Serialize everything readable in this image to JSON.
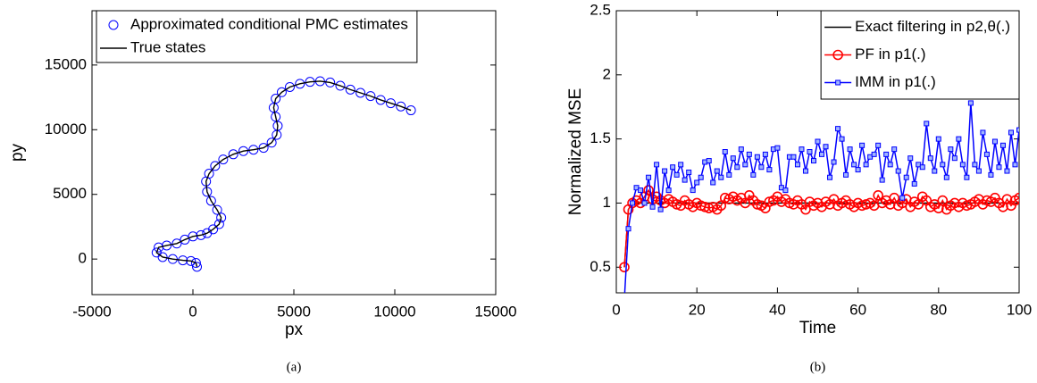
{
  "chart_data": [
    {
      "type": "scatter",
      "xlabel": "px",
      "ylabel": "py",
      "caption": "(a)",
      "xlim": [
        -5000,
        15000
      ],
      "ylim": [
        -2750,
        19200
      ],
      "xticks": [
        -5000,
        0,
        5000,
        10000,
        15000
      ],
      "yticks": [
        0,
        5000,
        10000,
        15000
      ],
      "legend": "upper left",
      "series": [
        {
          "name": "Approximated conditional PMC estimates",
          "color": "#0000ff",
          "marker": "o",
          "linestyle": "none",
          "x": [
            200,
            150,
            -100,
            -500,
            -1000,
            -1500,
            -1800,
            -1700,
            -1300,
            -800,
            -400,
            0,
            400,
            700,
            1000,
            1300,
            1400,
            1200,
            900,
            700,
            650,
            800,
            1100,
            1500,
            2000,
            2500,
            3000,
            3500,
            3900,
            4150,
            4200,
            4100,
            4000,
            4100,
            4400,
            4800,
            5300,
            5800,
            6300,
            6800,
            7300,
            7800,
            8300,
            8800,
            9300,
            9800,
            10300,
            10800
          ],
          "y": [
            -600,
            -300,
            -150,
            -100,
            0,
            150,
            500,
            900,
            1050,
            1200,
            1500,
            1750,
            1850,
            2000,
            2300,
            2700,
            3200,
            3800,
            4500,
            5200,
            6000,
            6600,
            7200,
            7700,
            8100,
            8350,
            8450,
            8600,
            9000,
            9600,
            10300,
            11000,
            11700,
            12400,
            12900,
            13300,
            13550,
            13700,
            13750,
            13650,
            13400,
            13100,
            12850,
            12600,
            12300,
            12050,
            11800,
            11500
          ]
        },
        {
          "name": "True states",
          "color": "#000000",
          "marker": "none",
          "linestyle": "-",
          "x": [
            200,
            150,
            -100,
            -500,
            -1000,
            -1500,
            -1800,
            -1700,
            -1300,
            -800,
            -400,
            0,
            400,
            700,
            1000,
            1300,
            1400,
            1200,
            900,
            700,
            650,
            800,
            1100,
            1500,
            2000,
            2500,
            3000,
            3500,
            3900,
            4150,
            4200,
            4100,
            4000,
            4100,
            4400,
            4800,
            5300,
            5800,
            6300,
            6800,
            7300,
            7800,
            8300,
            8800,
            9300,
            9800,
            10300,
            10800
          ],
          "y": [
            -600,
            -300,
            -150,
            -100,
            0,
            150,
            500,
            900,
            1050,
            1200,
            1500,
            1750,
            1850,
            2000,
            2300,
            2700,
            3200,
            3800,
            4500,
            5200,
            6000,
            6600,
            7200,
            7700,
            8100,
            8350,
            8450,
            8600,
            9000,
            9600,
            10300,
            11000,
            11700,
            12400,
            12900,
            13300,
            13550,
            13700,
            13750,
            13650,
            13400,
            13100,
            12850,
            12600,
            12300,
            12050,
            11800,
            11500
          ]
        }
      ]
    },
    {
      "type": "line",
      "xlabel": "Time",
      "ylabel": "Normalized MSE",
      "caption": "(b)",
      "xlim": [
        0,
        100
      ],
      "ylim": [
        0.3,
        2.5
      ],
      "xticks": [
        0,
        20,
        40,
        60,
        80,
        100
      ],
      "yticks": [
        0.5,
        1,
        1.5,
        2,
        2.5
      ],
      "legend": "upper right",
      "x": [
        2,
        3,
        4,
        5,
        6,
        7,
        8,
        9,
        10,
        11,
        12,
        13,
        14,
        15,
        16,
        17,
        18,
        19,
        20,
        21,
        22,
        23,
        24,
        25,
        26,
        27,
        28,
        29,
        30,
        31,
        32,
        33,
        34,
        35,
        36,
        37,
        38,
        39,
        40,
        41,
        42,
        43,
        44,
        45,
        46,
        47,
        48,
        49,
        50,
        51,
        52,
        53,
        54,
        55,
        56,
        57,
        58,
        59,
        60,
        61,
        62,
        63,
        64,
        65,
        66,
        67,
        68,
        69,
        70,
        71,
        72,
        73,
        74,
        75,
        76,
        77,
        78,
        79,
        80,
        81,
        82,
        83,
        84,
        85,
        86,
        87,
        88,
        89,
        90,
        91,
        92,
        93,
        94,
        95,
        96,
        97,
        98,
        99,
        100
      ],
      "series": [
        {
          "name": "Exact filtering in p2,θ(.)",
          "color": "#000000",
          "marker": "none",
          "linestyle": "-",
          "values": [
            0.5,
            0.95,
            1,
            1,
            1,
            1,
            1,
            1,
            1,
            1,
            1,
            1,
            1,
            1,
            1,
            1,
            1,
            1,
            1,
            1,
            1,
            1,
            1,
            1,
            1,
            1,
            1,
            1,
            1,
            1,
            1,
            1,
            1,
            1,
            1,
            1,
            1,
            1,
            1,
            1,
            1,
            1,
            1,
            1,
            1,
            1,
            1,
            1,
            1,
            1,
            1,
            1,
            1,
            1,
            1,
            1,
            1,
            1,
            1,
            1,
            1,
            1,
            1,
            1,
            1,
            1,
            1,
            1,
            1,
            1,
            1,
            1,
            1,
            1,
            1,
            1,
            1,
            1,
            1,
            1,
            1,
            1,
            1,
            1,
            1,
            1,
            1,
            1,
            1,
            1,
            1,
            1,
            1,
            1,
            1,
            1,
            1,
            1,
            1
          ]
        },
        {
          "name": "PF in p1(.)",
          "color": "#ff0000",
          "marker": "o",
          "linestyle": "-",
          "values": [
            0.5,
            0.95,
            1.0,
            1.02,
            1.0,
            1.05,
            1.1,
            1.03,
            1.05,
            1.02,
            1.0,
            1.03,
            1.01,
            0.99,
            0.98,
            1.02,
            0.99,
            0.97,
            1.0,
            0.98,
            0.97,
            0.96,
            0.97,
            0.95,
            0.98,
            1.04,
            1.03,
            1.05,
            1.02,
            1.04,
            1.0,
            1.06,
            1.02,
            0.99,
            0.98,
            0.96,
            1.01,
            1.02,
            1.05,
            1.01,
            1.03,
            1.0,
            0.99,
            1.02,
            0.99,
            0.95,
            1.01,
            0.98,
            1.0,
            0.97,
            1.01,
            0.99,
            1.03,
            0.98,
            1.0,
            1.02,
            0.99,
            0.97,
            1.0,
            0.98,
            0.99,
            1.0,
            0.98,
            1.06,
            1.0,
            1.02,
            0.99,
            1.04,
            0.98,
            1.0,
            1.03,
            0.97,
            1.01,
            0.99,
            1.05,
            1.02,
            0.97,
            0.99,
            0.96,
            1.02,
            0.95,
            0.98,
            1.0,
            0.97,
            1.0,
            0.98,
            0.99,
            1.01,
            1.03,
            0.99,
            1.02,
            1.01,
            1.04,
            1.0,
            0.97,
            1.03,
            0.98,
            1.02,
            1.04
          ]
        },
        {
          "name": "IMM in p1(.)",
          "color": "#0000ff",
          "marker": "s",
          "linestyle": "-",
          "values": [
            0.25,
            0.8,
            1.0,
            1.12,
            1.1,
            1.0,
            1.2,
            0.97,
            1.3,
            0.95,
            1.25,
            1.1,
            1.28,
            1.22,
            1.3,
            1.18,
            1.24,
            1.1,
            1.16,
            1.2,
            1.32,
            1.33,
            1.16,
            1.25,
            1.2,
            1.4,
            1.22,
            1.35,
            1.28,
            1.42,
            1.3,
            1.38,
            1.22,
            1.36,
            1.28,
            1.38,
            1.26,
            1.42,
            1.43,
            1.12,
            1.1,
            1.36,
            1.36,
            1.3,
            1.42,
            1.25,
            1.4,
            1.33,
            1.48,
            1.38,
            1.44,
            1.2,
            1.32,
            1.58,
            1.5,
            1.22,
            1.42,
            1.3,
            1.26,
            1.45,
            1.3,
            1.36,
            1.38,
            1.45,
            1.18,
            1.38,
            1.3,
            1.42,
            1.25,
            1.04,
            1.2,
            1.35,
            1.15,
            1.3,
            1.28,
            1.62,
            1.35,
            1.25,
            1.5,
            1.3,
            1.2,
            1.42,
            1.35,
            1.5,
            1.3,
            1.2,
            1.78,
            1.3,
            1.25,
            1.55,
            1.38,
            1.22,
            1.48,
            1.28,
            1.45,
            1.25,
            1.55,
            1.3,
            1.57
          ]
        }
      ]
    }
  ]
}
